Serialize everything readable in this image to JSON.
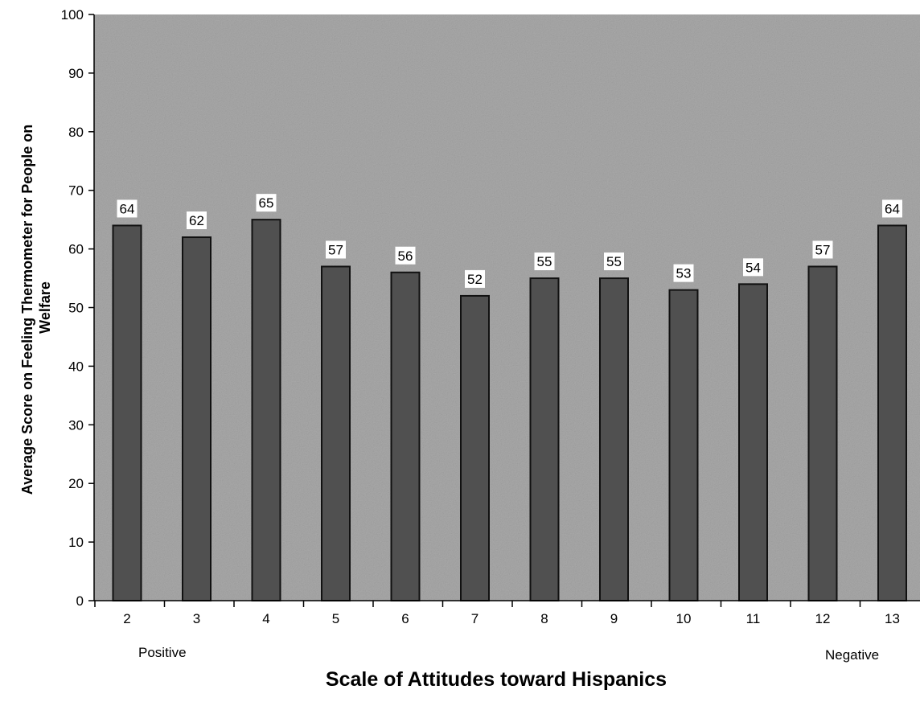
{
  "chart_data": {
    "type": "bar",
    "categories": [
      "2",
      "3",
      "4",
      "5",
      "6",
      "7",
      "8",
      "9",
      "10",
      "11",
      "12",
      "13"
    ],
    "values": [
      64,
      62,
      65,
      57,
      56,
      52,
      55,
      55,
      53,
      54,
      57,
      64
    ],
    "data_labels": [
      "64",
      "62",
      "65",
      "57",
      "56",
      "52",
      "55",
      "55",
      "53",
      "54",
      "57",
      "64"
    ],
    "title": "",
    "xlabel": "Scale of Attitudes toward Hispanics",
    "ylabel_lines": [
      "Average Score on Feeling Thermometer for People on",
      "Welfare"
    ],
    "ylim": [
      0,
      100
    ],
    "yticks": [
      0,
      10,
      20,
      30,
      40,
      50,
      60,
      70,
      80,
      90,
      100
    ],
    "grid": false,
    "legend": "none",
    "end_labels": {
      "left": "Positive",
      "right": "Negative"
    },
    "colors": {
      "plot_background": "#a9a9a9",
      "bar_fill": "#505050",
      "bar_stroke": "#111111",
      "label_background": "#ffffff"
    }
  }
}
